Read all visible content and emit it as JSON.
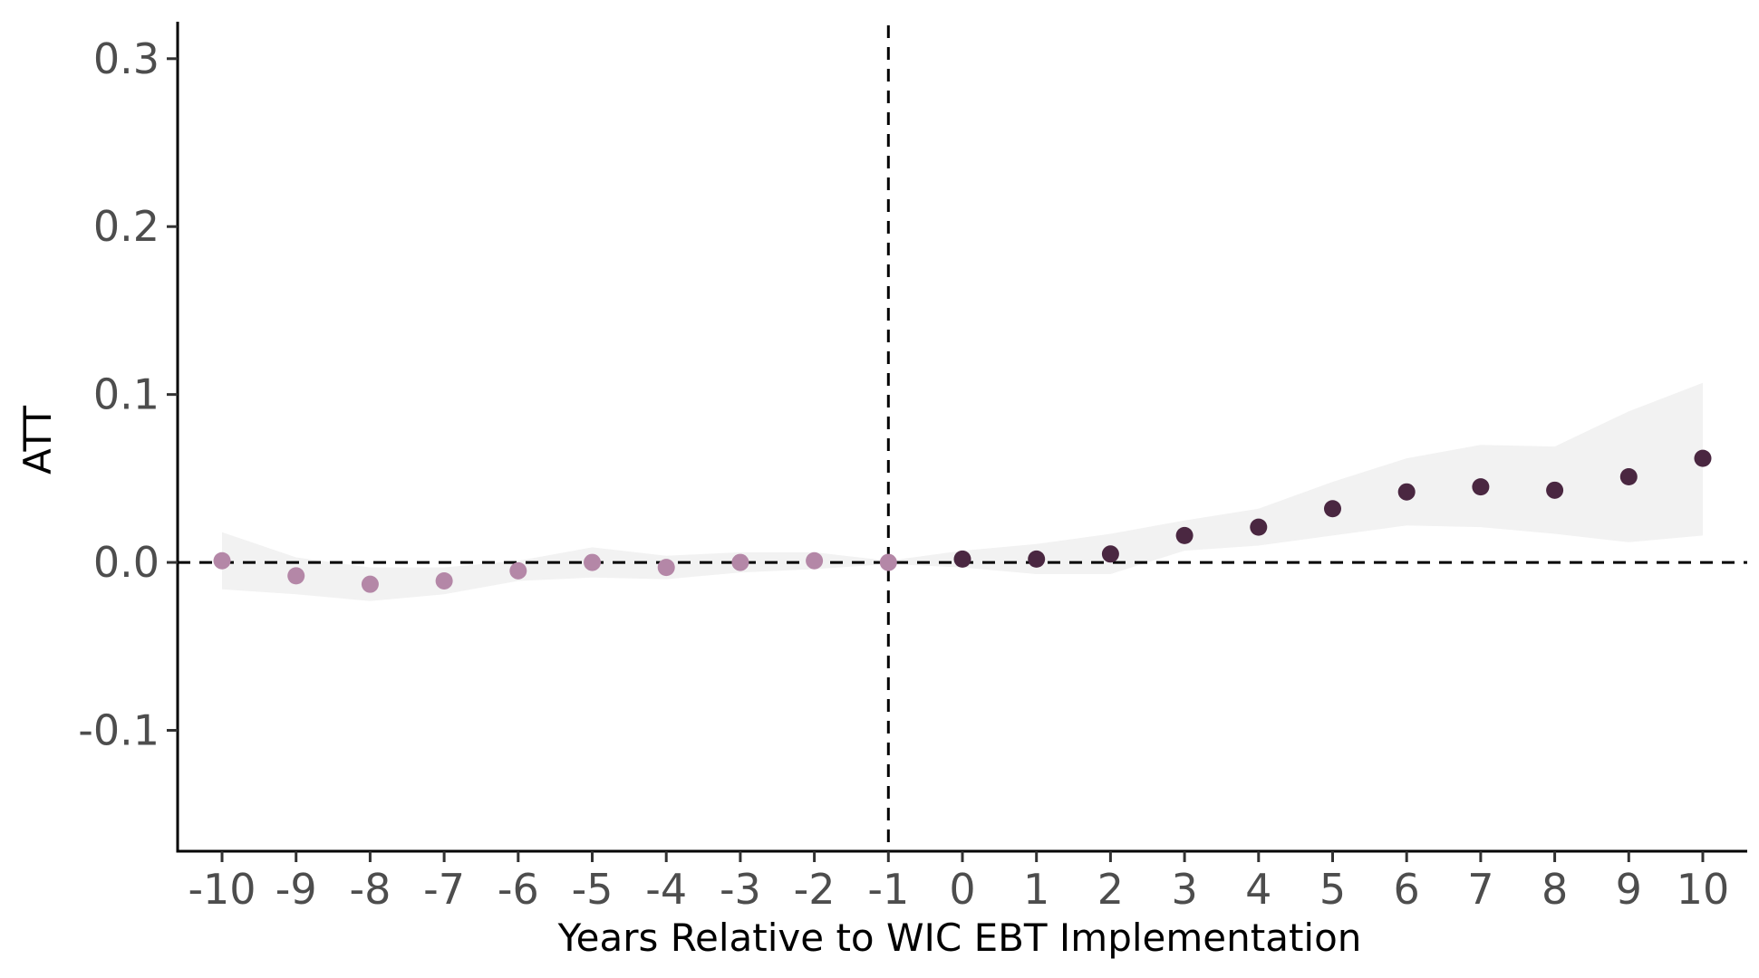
{
  "chart_data": {
    "type": "scatter",
    "title": "",
    "xlabel": "Years Relative to WIC EBT Implementation",
    "ylabel": "ATT",
    "xlim": [
      -10.6,
      10.6
    ],
    "ylim": [
      -0.172,
      0.322
    ],
    "x_ticks": [
      -10,
      -9,
      -8,
      -7,
      -6,
      -5,
      -4,
      -3,
      -2,
      -1,
      0,
      1,
      2,
      3,
      4,
      5,
      6,
      7,
      8,
      9,
      10
    ],
    "x_tick_labels": [
      "-10",
      "-9",
      "-8",
      "-7",
      "-6",
      "-5",
      "-4",
      "-3",
      "-2",
      "-1",
      "0",
      "1",
      "2",
      "3",
      "4",
      "5",
      "6",
      "7",
      "8",
      "9",
      "10"
    ],
    "y_ticks": [
      0.3,
      0.2,
      0.1,
      0.0,
      -0.1
    ],
    "y_tick_labels": [
      "0.3",
      "0.2",
      "0.1",
      "0.0",
      "-0.1"
    ],
    "grid": false,
    "legend": "none",
    "reference_lines": [
      {
        "orientation": "horizontal",
        "value": 0,
        "style": "dashed"
      },
      {
        "orientation": "vertical",
        "value": -1,
        "style": "dashed"
      }
    ],
    "colors": {
      "pre": "#b487a7",
      "post": "#4a2741",
      "band": "#f2f2f2",
      "axis": "#000000"
    },
    "series": [
      {
        "group": "pre",
        "x": [
          -10,
          -9,
          -8,
          -7,
          -6,
          -5,
          -4,
          -3,
          -2,
          -1
        ],
        "y": [
          0.001,
          -0.008,
          -0.013,
          -0.011,
          -0.005,
          0.0,
          -0.003,
          0.0,
          0.001,
          0.0
        ],
        "ci_lower": [
          -0.016,
          -0.019,
          -0.023,
          -0.019,
          -0.011,
          -0.009,
          -0.01,
          -0.006,
          -0.004,
          -0.001
        ],
        "ci_upper": [
          0.018,
          0.003,
          -0.003,
          -0.003,
          0.001,
          0.009,
          0.004,
          0.006,
          0.006,
          0.001
        ]
      },
      {
        "group": "post",
        "x": [
          0,
          1,
          2,
          3,
          4,
          5,
          6,
          7,
          8,
          9,
          10
        ],
        "y": [
          0.002,
          0.002,
          0.005,
          0.016,
          0.021,
          0.032,
          0.042,
          0.045,
          0.043,
          0.051,
          0.062
        ],
        "ci_lower": [
          -0.003,
          -0.007,
          -0.007,
          0.007,
          0.01,
          0.016,
          0.022,
          0.021,
          0.017,
          0.012,
          0.016
        ],
        "ci_upper": [
          0.007,
          0.011,
          0.017,
          0.025,
          0.032,
          0.048,
          0.062,
          0.07,
          0.069,
          0.09,
          0.107
        ]
      }
    ]
  }
}
